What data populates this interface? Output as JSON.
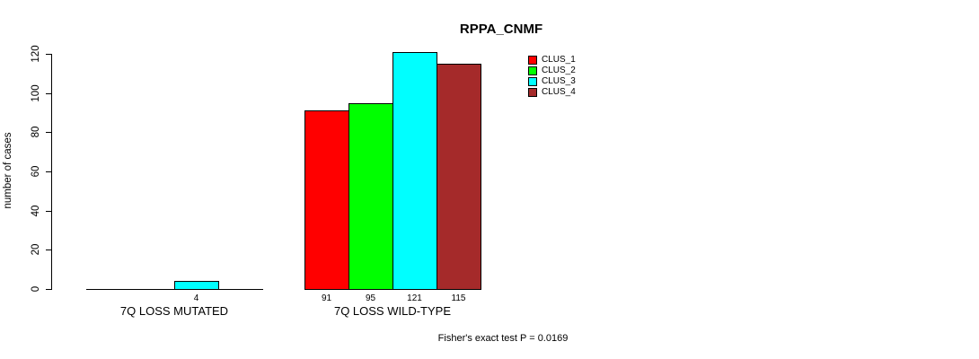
{
  "chart_data": {
    "type": "bar",
    "title": "RPPA_CNMF",
    "ylabel": "number of cases",
    "xlabel": "",
    "ylim": [
      0,
      120
    ],
    "yticks": [
      0,
      20,
      40,
      60,
      80,
      100,
      120
    ],
    "grid": false,
    "legend_position": "top-right",
    "categories": [
      "7Q LOSS MUTATED",
      "7Q LOSS WILD-TYPE"
    ],
    "series": [
      {
        "name": "CLUS_1",
        "color": "#FF0000",
        "values": [
          0,
          91
        ]
      },
      {
        "name": "CLUS_2",
        "color": "#00FF00",
        "values": [
          0,
          95
        ]
      },
      {
        "name": "CLUS_3",
        "color": "#00FFFF",
        "values": [
          4,
          121
        ]
      },
      {
        "name": "CLUS_4",
        "color": "#A52A2A",
        "values": [
          0,
          115
        ]
      }
    ],
    "bar_labels": [
      [
        "",
        "",
        "4",
        ""
      ],
      [
        "91",
        "95",
        "121",
        "115"
      ]
    ],
    "bar_border_color": "#000000",
    "annotation": "Fisher's exact test P = 0.0169"
  }
}
